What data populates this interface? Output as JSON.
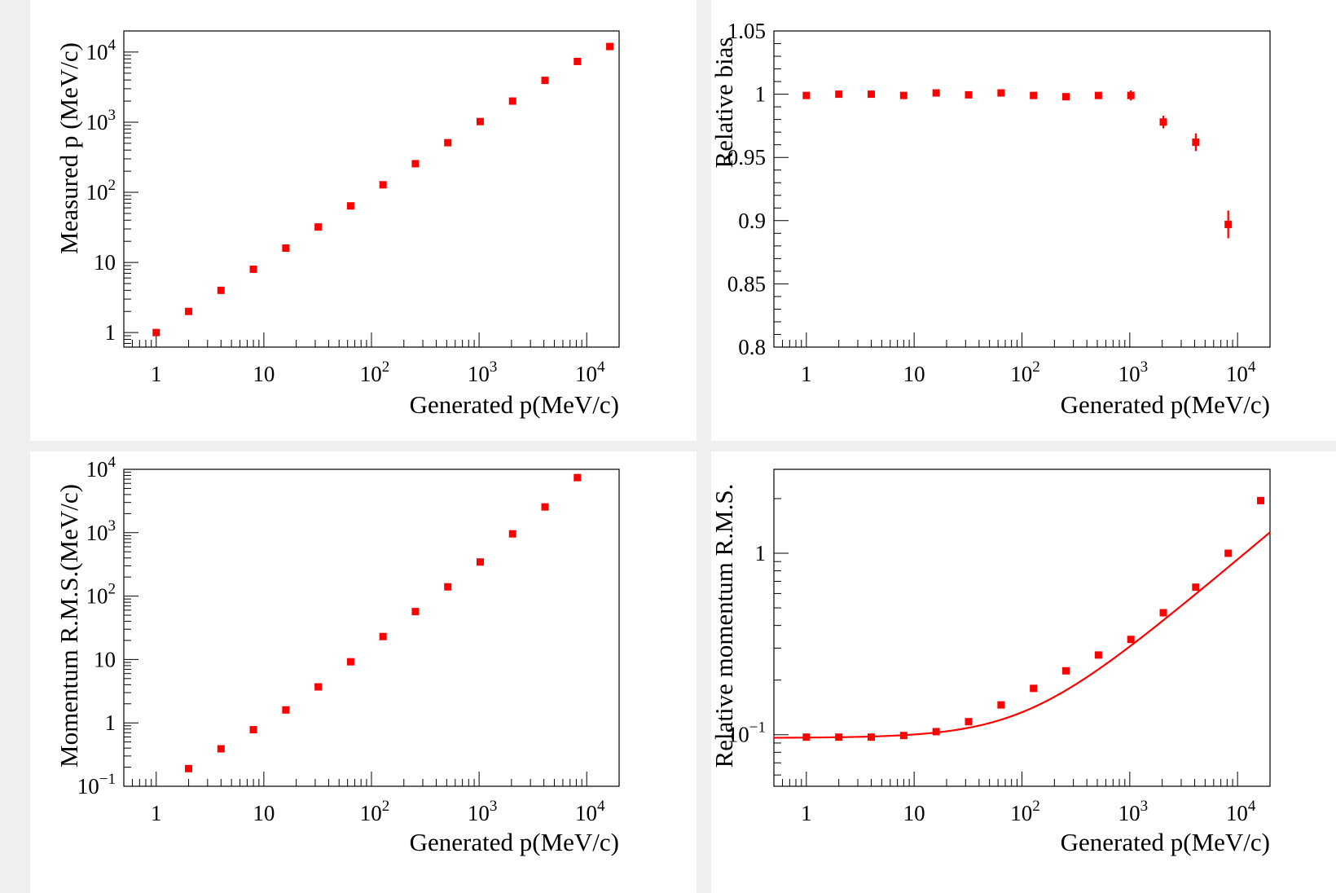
{
  "chart_data": [
    {
      "type": "scatter",
      "title": "",
      "xlabel": "Generated p(MeV/c)",
      "ylabel": "Measured p (MeV/c)",
      "xscale": "log",
      "yscale": "log",
      "xlim": [
        0.5,
        20000
      ],
      "ylim": [
        0.62,
        20000
      ],
      "grid": false,
      "marker_color": "#ff0000",
      "x_ticks": [
        {
          "value": 1,
          "label": "1"
        },
        {
          "value": 10,
          "label": "10"
        },
        {
          "value": 100,
          "base": "10",
          "exp": "2"
        },
        {
          "value": 1000,
          "base": "10",
          "exp": "3"
        },
        {
          "value": 10000,
          "base": "10",
          "exp": "4"
        }
      ],
      "y_ticks": [
        {
          "value": 1,
          "label": "1"
        },
        {
          "value": 10,
          "label": "10"
        },
        {
          "value": 100,
          "base": "10",
          "exp": "2"
        },
        {
          "value": 1000,
          "base": "10",
          "exp": "3"
        },
        {
          "value": 10000,
          "base": "10",
          "exp": "4"
        }
      ],
      "points": [
        {
          "x": 1,
          "y": 1
        },
        {
          "x": 2,
          "y": 2
        },
        {
          "x": 4,
          "y": 4
        },
        {
          "x": 8,
          "y": 8
        },
        {
          "x": 16,
          "y": 16
        },
        {
          "x": 32,
          "y": 32
        },
        {
          "x": 64,
          "y": 64
        },
        {
          "x": 128,
          "y": 128
        },
        {
          "x": 256,
          "y": 256
        },
        {
          "x": 512,
          "y": 510
        },
        {
          "x": 1024,
          "y": 1020
        },
        {
          "x": 2048,
          "y": 2000
        },
        {
          "x": 4096,
          "y": 3950
        },
        {
          "x": 8192,
          "y": 7350
        },
        {
          "x": 16384,
          "y": 12000
        }
      ]
    },
    {
      "type": "scatter",
      "title": "",
      "xlabel": "Generated p(MeV/c)",
      "ylabel": "Relative bias",
      "xscale": "log",
      "yscale": "linear",
      "xlim": [
        0.5,
        20000
      ],
      "ylim": [
        0.8,
        1.05
      ],
      "grid": false,
      "marker_color": "#ff0000",
      "x_ticks": [
        {
          "value": 1,
          "label": "1"
        },
        {
          "value": 10,
          "label": "10"
        },
        {
          "value": 100,
          "base": "10",
          "exp": "2"
        },
        {
          "value": 1000,
          "base": "10",
          "exp": "3"
        },
        {
          "value": 10000,
          "base": "10",
          "exp": "4"
        }
      ],
      "y_ticks": [
        {
          "value": 0.8,
          "label": "0.8"
        },
        {
          "value": 0.85,
          "label": "0.85"
        },
        {
          "value": 0.9,
          "label": "0.9"
        },
        {
          "value": 0.95,
          "label": "0.95"
        },
        {
          "value": 1.0,
          "label": "1"
        },
        {
          "value": 1.05,
          "label": "1.05"
        }
      ],
      "points": [
        {
          "x": 1,
          "y": 0.999,
          "err": 0.001
        },
        {
          "x": 2,
          "y": 1.0,
          "err": 0.001
        },
        {
          "x": 4,
          "y": 1.0,
          "err": 0.001
        },
        {
          "x": 8,
          "y": 0.999,
          "err": 0.001
        },
        {
          "x": 16,
          "y": 1.001,
          "err": 0.001
        },
        {
          "x": 32,
          "y": 0.9995,
          "err": 0.001
        },
        {
          "x": 64,
          "y": 1.001,
          "err": 0.001
        },
        {
          "x": 128,
          "y": 0.999,
          "err": 0.001
        },
        {
          "x": 256,
          "y": 0.998,
          "err": 0.001
        },
        {
          "x": 512,
          "y": 0.999,
          "err": 0.001
        },
        {
          "x": 1024,
          "y": 0.999,
          "err": 0.004
        },
        {
          "x": 2048,
          "y": 0.978,
          "err": 0.005
        },
        {
          "x": 4096,
          "y": 0.962,
          "err": 0.007
        },
        {
          "x": 8192,
          "y": 0.897,
          "err": 0.011
        }
      ]
    },
    {
      "type": "scatter",
      "title": "",
      "xlabel": "Generated p(MeV/c)",
      "ylabel": "Momentum R.M.S.(MeV/c)",
      "xscale": "log",
      "yscale": "log",
      "xlim": [
        0.5,
        20000
      ],
      "ylim": [
        0.1,
        10000
      ],
      "grid": false,
      "marker_color": "#ff0000",
      "x_ticks": [
        {
          "value": 1,
          "label": "1"
        },
        {
          "value": 10,
          "label": "10"
        },
        {
          "value": 100,
          "base": "10",
          "exp": "2"
        },
        {
          "value": 1000,
          "base": "10",
          "exp": "3"
        },
        {
          "value": 10000,
          "base": "10",
          "exp": "4"
        }
      ],
      "y_ticks": [
        {
          "value": 0.1,
          "base": "10",
          "exp": "−1"
        },
        {
          "value": 1,
          "label": "1"
        },
        {
          "value": 10,
          "label": "10"
        },
        {
          "value": 100,
          "base": "10",
          "exp": "2"
        },
        {
          "value": 1000,
          "base": "10",
          "exp": "3"
        },
        {
          "value": 10000,
          "base": "10",
          "exp": "4"
        }
      ],
      "points": [
        {
          "x": 2,
          "y": 0.19
        },
        {
          "x": 4,
          "y": 0.39
        },
        {
          "x": 8,
          "y": 0.78
        },
        {
          "x": 16,
          "y": 1.6
        },
        {
          "x": 32,
          "y": 3.7
        },
        {
          "x": 64,
          "y": 9.2
        },
        {
          "x": 128,
          "y": 23
        },
        {
          "x": 256,
          "y": 57
        },
        {
          "x": 512,
          "y": 140
        },
        {
          "x": 1024,
          "y": 345
        },
        {
          "x": 2048,
          "y": 960
        },
        {
          "x": 4096,
          "y": 2550
        },
        {
          "x": 8192,
          "y": 7400
        }
      ]
    },
    {
      "type": "scatter",
      "title": "",
      "xlabel": "Generated p(MeV/c)",
      "ylabel": "Relative momentum R.M.S.",
      "xscale": "log",
      "yscale": "log",
      "xlim": [
        0.5,
        20000
      ],
      "ylim": [
        0.052,
        2.9
      ],
      "grid": false,
      "marker_color": "#ff0000",
      "x_ticks": [
        {
          "value": 1,
          "label": "1"
        },
        {
          "value": 10,
          "label": "10"
        },
        {
          "value": 100,
          "base": "10",
          "exp": "2"
        },
        {
          "value": 1000,
          "base": "10",
          "exp": "3"
        },
        {
          "value": 10000,
          "base": "10",
          "exp": "4"
        }
      ],
      "y_ticks": [
        {
          "value": 0.1,
          "base": "10",
          "exp": "−1"
        },
        {
          "value": 1,
          "label": "1"
        }
      ],
      "points": [
        {
          "x": 1,
          "y": 0.097
        },
        {
          "x": 2,
          "y": 0.097
        },
        {
          "x": 4,
          "y": 0.097
        },
        {
          "x": 8,
          "y": 0.099
        },
        {
          "x": 16,
          "y": 0.104
        },
        {
          "x": 32,
          "y": 0.118
        },
        {
          "x": 64,
          "y": 0.146
        },
        {
          "x": 128,
          "y": 0.18
        },
        {
          "x": 256,
          "y": 0.225
        },
        {
          "x": 512,
          "y": 0.275
        },
        {
          "x": 1024,
          "y": 0.335
        },
        {
          "x": 2048,
          "y": 0.47
        },
        {
          "x": 4096,
          "y": 0.65
        },
        {
          "x": 8192,
          "y": 1.0
        },
        {
          "x": 16384,
          "y": 1.95
        }
      ],
      "fit": {
        "model": "sqrt(a^2 + (b*x^c)^2)",
        "a": 0.096,
        "b": 0.0092,
        "c": 0.5,
        "color": "#ff0000"
      }
    }
  ]
}
